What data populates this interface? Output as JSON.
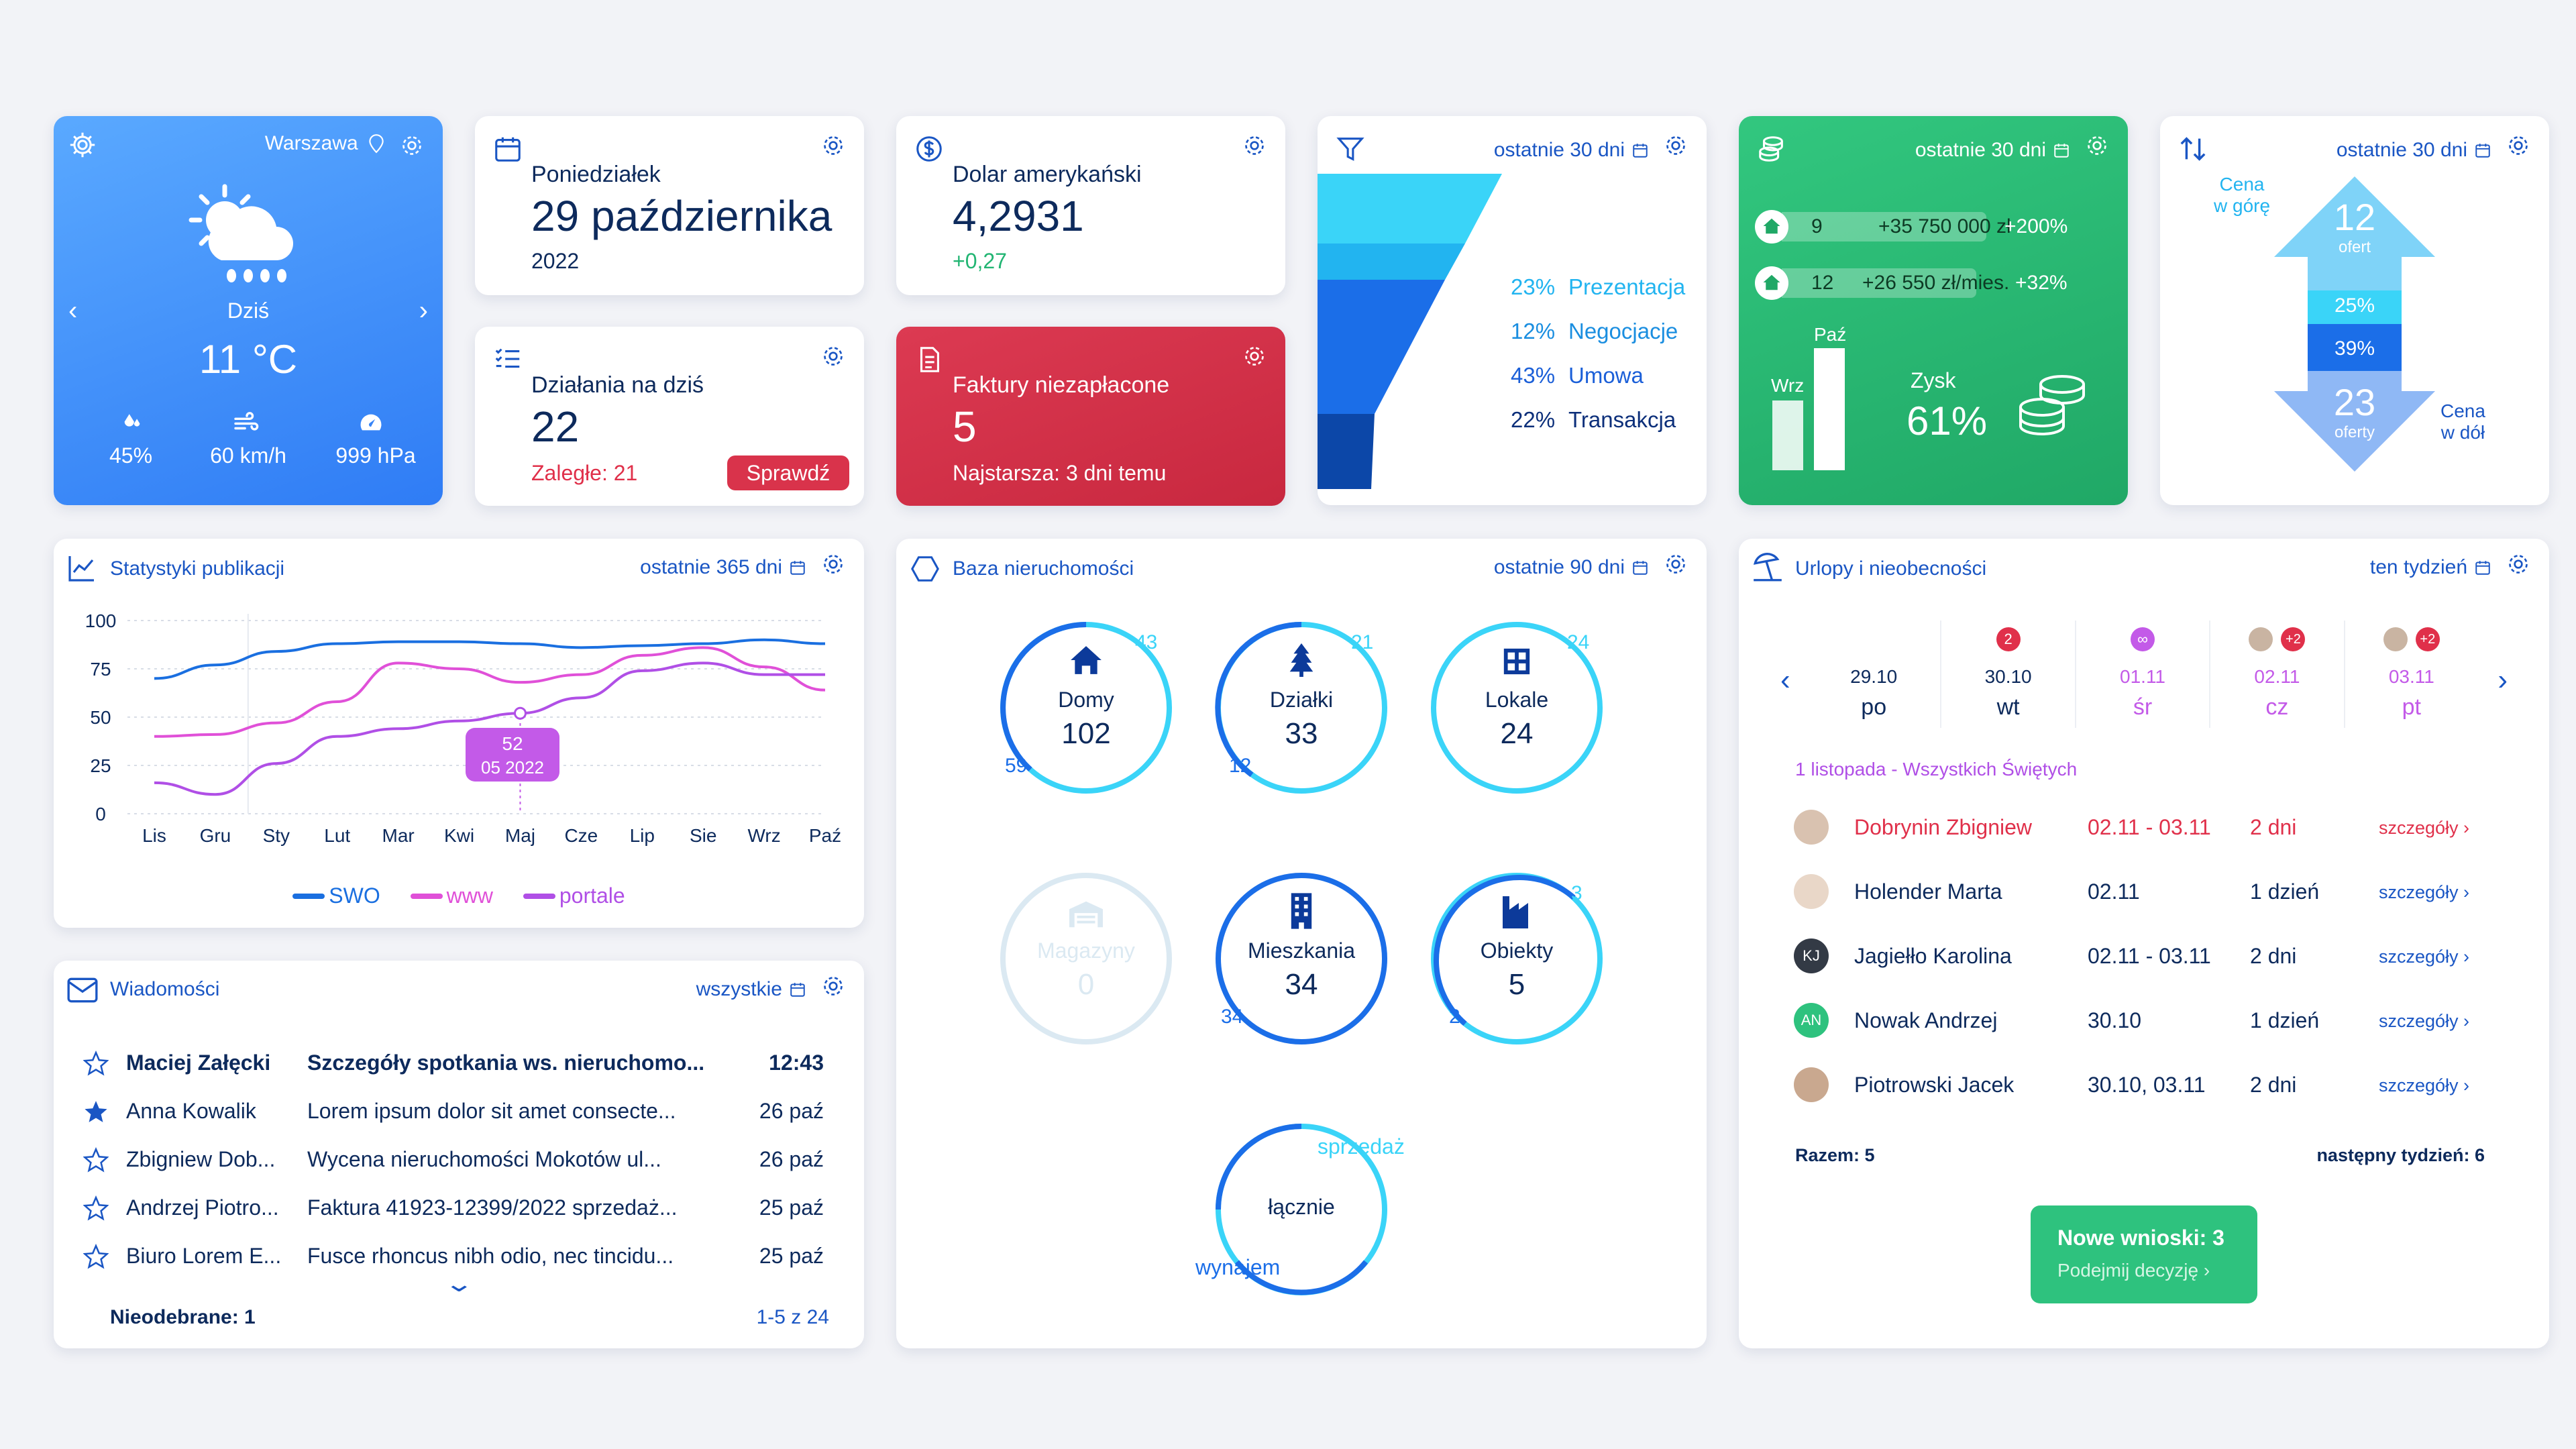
{
  "weather": {
    "city": "Warszawa",
    "day": "Dziś",
    "temp": "11 °C",
    "humidity": "45%",
    "wind": "60 km/h",
    "pressure": "999 hPa"
  },
  "date_card": {
    "weekday": "Poniedziałek",
    "date": "29 października",
    "year": "2022"
  },
  "currency": {
    "name": "Dolar amerykański",
    "rate": "4,2931",
    "change": "+0,27"
  },
  "tasks": {
    "title": "Działania na dziś",
    "count": "22",
    "overdue": "Zaległe: 21",
    "button": "Sprawdź"
  },
  "invoices": {
    "title": "Faktury niezapłacone",
    "count": "5",
    "oldest": "Najstarsza: 3 dni temu"
  },
  "funnel": {
    "range": "ostatnie 30 dni",
    "stages": [
      {
        "pct": "23%",
        "label": "Prezentacja",
        "color": "#3ad4f8"
      },
      {
        "pct": "12%",
        "label": "Negocjacje",
        "color": "#22b4f0"
      },
      {
        "pct": "43%",
        "label": "Umowa",
        "color": "#1b6ee8"
      },
      {
        "pct": "22%",
        "label": "Transakcja",
        "color": "#0c47a8"
      }
    ]
  },
  "sales": {
    "range": "ostatnie 30 dni",
    "rows": [
      {
        "count": "9",
        "amount": "+35 750 000 zł",
        "change": "+200%"
      },
      {
        "count": "12",
        "amount": "+26 550 zł/mies.",
        "change": "+32%"
      }
    ],
    "bar_prev_label": "Wrz",
    "bar_curr_label": "Paź",
    "profit_label": "Zysk",
    "profit_value": "61%"
  },
  "prices": {
    "range": "ostatnie 30 dni",
    "up_label": "Cena\nw górę",
    "down_label": "Cena\nw dół",
    "up_count": "12",
    "up_unit": "ofert",
    "pct1": "25%",
    "pct2": "39%",
    "down_count": "23",
    "down_unit": "oferty"
  },
  "pub_stats": {
    "title": "Statystyki publikacji",
    "range": "ostatnie 365 dni",
    "tooltip_value": "52",
    "tooltip_date": "05 2022"
  },
  "chart_data": {
    "type": "line",
    "x": [
      "Lis",
      "Gru",
      "Sty",
      "Lut",
      "Mar",
      "Kwi",
      "Maj",
      "Cze",
      "Lip",
      "Sie",
      "Wrz",
      "Paź"
    ],
    "ylim": [
      0,
      100
    ],
    "yticks": [
      0,
      25,
      50,
      75,
      100
    ],
    "series": [
      {
        "name": "SWO",
        "color": "#1a6fe0",
        "values": [
          70,
          77,
          84,
          88,
          89,
          89,
          88,
          86,
          87,
          88,
          90,
          88
        ]
      },
      {
        "name": "www",
        "color": "#e050d8",
        "values": [
          40,
          41,
          47,
          58,
          78,
          75,
          68,
          72,
          82,
          86,
          76,
          64
        ]
      },
      {
        "name": "portale",
        "color": "#b04fe6",
        "values": [
          16,
          10,
          26,
          40,
          44,
          48,
          52,
          60,
          74,
          78,
          72,
          72
        ]
      }
    ]
  },
  "messages": {
    "title": "Wiadomości",
    "filter": "wszystkie",
    "unread": "Nieodebrane: 1",
    "pager": "1-5 z 24",
    "items": [
      {
        "from": "Maciej Załęcki",
        "subject": "Szczegóły spotkania ws. nieruchomo...",
        "time": "12:43",
        "bold": true,
        "starred": false
      },
      {
        "from": "Anna Kowalik",
        "subject": "Lorem ipsum dolor sit amet consecte...",
        "time": "26 paź",
        "bold": false,
        "starred": true
      },
      {
        "from": "Zbigniew Dob...",
        "subject": "Wycena nieruchomości Mokotów ul...",
        "time": "26 paź",
        "bold": false,
        "starred": false
      },
      {
        "from": "Andrzej Piotro...",
        "subject": "Faktura 41923-12399/2022 sprzedaż...",
        "time": "25 paź",
        "bold": false,
        "starred": false
      },
      {
        "from": "Biuro Lorem E...",
        "subject": "Fusce rhoncus nibh odio, nec tincidu...",
        "time": "25 paź",
        "bold": false,
        "starred": false
      }
    ]
  },
  "property": {
    "title": "Baza nieruchomości",
    "range": "ostatnie 90 dni",
    "rings": [
      {
        "label": "Domy",
        "value": "102",
        "top": "43",
        "bottom": "59",
        "icon": "house-icon"
      },
      {
        "label": "Działki",
        "value": "33",
        "top": "21",
        "bottom": "12",
        "icon": "tree-icon"
      },
      {
        "label": "Lokale",
        "value": "24",
        "top": "24",
        "bottom": "",
        "icon": "grid-window-icon"
      },
      {
        "label": "Magazyny",
        "value": "0",
        "top": "",
        "bottom": "",
        "icon": "warehouse-icon"
      },
      {
        "label": "Mieszkania",
        "value": "34",
        "top": "",
        "bottom": "34",
        "icon": "building-icon"
      },
      {
        "label": "Obiekty",
        "value": "5",
        "top": "3",
        "bottom": "2",
        "icon": "factory-icon"
      }
    ],
    "total_label": "łącznie",
    "sale_label": "sprzedaż",
    "rent_label": "wynajem"
  },
  "leave": {
    "title": "Urlopy i nieobecności",
    "range": "ten tydzień",
    "days": [
      {
        "date": "29.10",
        "name": "po",
        "badge": "",
        "style": "normal"
      },
      {
        "date": "30.10",
        "name": "wt",
        "badge": "2",
        "style": "normal"
      },
      {
        "date": "01.11",
        "name": "śr",
        "badge": "∞",
        "style": "holiday"
      },
      {
        "date": "02.11",
        "name": "cz",
        "badge": "+2",
        "style": "holiday"
      },
      {
        "date": "03.11",
        "name": "pt",
        "badge": "+2",
        "style": "holiday"
      }
    ],
    "holiday": "1 listopada - Wszystkich Świętych",
    "people": [
      {
        "name": "Dobrynin Zbigniew",
        "dates": "02.11 - 03.11",
        "days": "2 dni",
        "link": "szczegóły ›",
        "red": true,
        "avatar": ""
      },
      {
        "name": "Holender Marta",
        "dates": "02.11",
        "days": "1 dzień",
        "link": "szczegóły ›",
        "red": false,
        "avatar": ""
      },
      {
        "name": "Jagiełło Karolina",
        "dates": "02.11 - 03.11",
        "days": "2 dni",
        "link": "szczegóły ›",
        "red": false,
        "avatar": "KJ"
      },
      {
        "name": "Nowak Andrzej",
        "dates": "30.10",
        "days": "1 dzień",
        "link": "szczegóły ›",
        "red": false,
        "avatar": "AN"
      },
      {
        "name": "Piotrowski Jacek",
        "dates": "30.10, 03.11",
        "days": "2 dni",
        "link": "szczegóły ›",
        "red": false,
        "avatar": ""
      }
    ],
    "total": "Razem: 5",
    "next_week": "następny tydzień: 6",
    "btn_title": "Nowe wnioski: 3",
    "btn_sub": "Podejmij decyzję ›"
  }
}
